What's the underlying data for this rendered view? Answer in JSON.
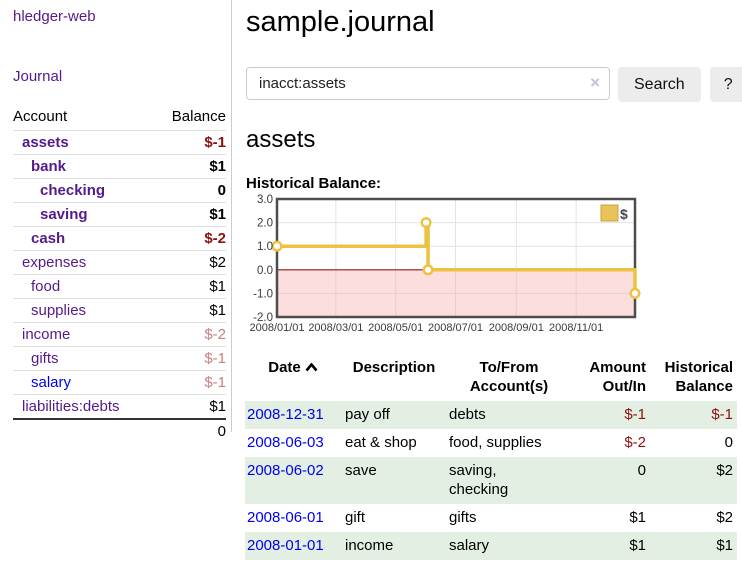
{
  "colors": {
    "link_purple": "#551a8b",
    "link_blue": "#0000ee",
    "negative_strong": "#8f1010",
    "negative_soft": "#c98080",
    "row_green": "#e2efe2",
    "chart_line_gold": "#edc240",
    "chart_negative_fill": "#f5a0a0",
    "chart_zero_line": "#8b1a1a"
  },
  "sidebar": {
    "app_title": "hledger-web",
    "journal_link": "Journal",
    "accounts_table": {
      "account_header": "Account",
      "balance_header": "Balance",
      "rows": [
        {
          "name": "assets",
          "balance": "$-1",
          "indent": 1,
          "bold": true,
          "name_color": "purple",
          "balance_color": "neg-strong"
        },
        {
          "name": "bank",
          "balance": "$1",
          "indent": 2,
          "bold": true,
          "name_color": "purple",
          "balance_color": "normal"
        },
        {
          "name": "checking",
          "balance": "0",
          "indent": 3,
          "bold": true,
          "name_color": "purple",
          "balance_color": "normal"
        },
        {
          "name": "saving",
          "balance": "$1",
          "indent": 3,
          "bold": true,
          "name_color": "purple",
          "balance_color": "normal"
        },
        {
          "name": "cash",
          "balance": "$-2",
          "indent": 2,
          "bold": true,
          "name_color": "purple",
          "balance_color": "neg-strong"
        },
        {
          "name": "expenses",
          "balance": "$2",
          "indent": 1,
          "bold": false,
          "name_color": "purple",
          "balance_color": "normal"
        },
        {
          "name": "food",
          "balance": "$1",
          "indent": 2,
          "bold": false,
          "name_color": "purple",
          "balance_color": "normal"
        },
        {
          "name": "supplies",
          "balance": "$1",
          "indent": 2,
          "bold": false,
          "name_color": "purple",
          "balance_color": "normal"
        },
        {
          "name": "income",
          "balance": "$-2",
          "indent": 1,
          "bold": false,
          "name_color": "purple",
          "balance_color": "neg-soft"
        },
        {
          "name": "gifts",
          "balance": "$-1",
          "indent": 2,
          "bold": false,
          "name_color": "purple",
          "balance_color": "neg-soft"
        },
        {
          "name": "salary",
          "balance": "$-1",
          "indent": 2,
          "bold": false,
          "name_color": "blue",
          "balance_color": "neg-soft"
        },
        {
          "name": "liabilities:debts",
          "balance": "$1",
          "indent": 1,
          "bold": false,
          "name_color": "purple",
          "balance_color": "normal"
        }
      ],
      "total": "0"
    }
  },
  "main": {
    "page_title": "sample.journal",
    "search": {
      "value": "inacct:assets",
      "clear_icon": "×",
      "search_button": "Search",
      "help_button": "?"
    },
    "account_heading": "assets",
    "chart_title": "Historical Balance:"
  },
  "chart_data": {
    "type": "line",
    "step": true,
    "title": "Historical Balance",
    "series": [
      {
        "name": "$",
        "color": "#edc240",
        "points": [
          [
            "2008-01-01",
            1
          ],
          [
            "2008-06-01",
            2
          ],
          [
            "2008-06-03",
            0
          ],
          [
            "2008-12-31",
            -1
          ]
        ]
      }
    ],
    "x_range": [
      "2008-01-01",
      "2008-12-31"
    ],
    "ylim": [
      -2,
      3
    ],
    "yticks": [
      3,
      2,
      1,
      0,
      -1,
      -2
    ],
    "ytick_labels": [
      "3.0",
      "2.0",
      "1.0",
      "0.0",
      "-1.0",
      "-2.0"
    ],
    "xticks": [
      {
        "date": "2008-01-01",
        "label": "2008/01/01"
      },
      {
        "date": "2008-03-01",
        "label": "2008/03/01"
      },
      {
        "date": "2008-05-01",
        "label": "2008/05/01"
      },
      {
        "date": "2008-07-01",
        "label": "2008/07/01"
      },
      {
        "date": "2008-09-01",
        "label": "2008/09/01"
      },
      {
        "date": "2008-11-01",
        "label": "2008/11/01"
      }
    ],
    "grid": true,
    "legend_position": "top-right",
    "negative_region_shaded": true
  },
  "register_table": {
    "headers": {
      "date": "Date",
      "description": "Description",
      "tofrom": "To/From\nAccount(s)",
      "amount": "Amount\nOut/In",
      "balance": "Historical\nBalance"
    },
    "sort": {
      "column": "date",
      "direction": "ascending"
    },
    "rows": [
      {
        "date": "2008-12-31",
        "description": "pay off",
        "tofrom": "debts",
        "amount": "$-1",
        "balance": "$-1",
        "amount_negative": true,
        "balance_negative": true,
        "shaded": true
      },
      {
        "date": "2008-06-03",
        "description": "eat & shop",
        "tofrom": "food, supplies",
        "amount": "$-2",
        "balance": "0",
        "amount_negative": true,
        "balance_negative": false,
        "shaded": false
      },
      {
        "date": "2008-06-02",
        "description": "save",
        "tofrom": "saving,\nchecking",
        "amount": "0",
        "balance": "$2",
        "amount_negative": false,
        "balance_negative": false,
        "shaded": true
      },
      {
        "date": "2008-06-01",
        "description": "gift",
        "tofrom": "gifts",
        "amount": "$1",
        "balance": "$2",
        "amount_negative": false,
        "balance_negative": false,
        "shaded": false
      },
      {
        "date": "2008-01-01",
        "description": "income",
        "tofrom": "salary",
        "amount": "$1",
        "balance": "$1",
        "amount_negative": false,
        "balance_negative": false,
        "shaded": true
      }
    ]
  }
}
